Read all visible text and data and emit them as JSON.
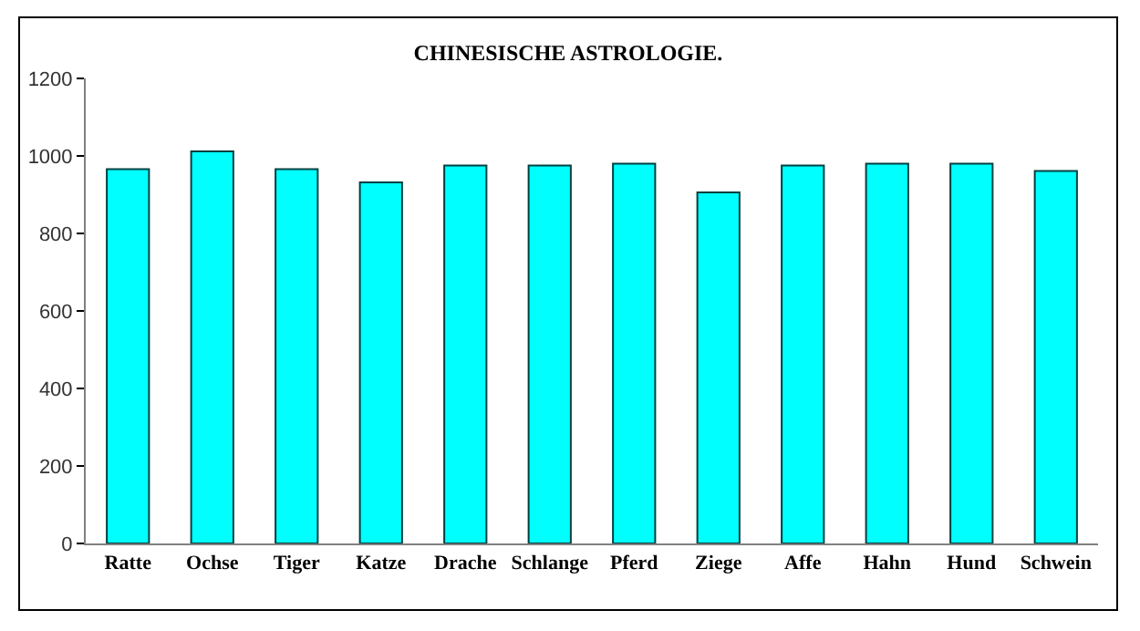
{
  "chart_data": {
    "type": "bar",
    "title": "CHINESISCHE ASTROLOGIE.",
    "categories": [
      "Ratte",
      "Ochse",
      "Tiger",
      "Katze",
      "Drache",
      "Schlange",
      "Pferd",
      "Ziege",
      "Affe",
      "Hahn",
      "Hund",
      "Schwein"
    ],
    "values": [
      966,
      1012,
      966,
      932,
      975,
      975,
      980,
      906,
      975,
      980,
      980,
      961
    ],
    "color": "#00ffff",
    "ylim": [
      0,
      1200
    ],
    "yticks": [
      0,
      200,
      400,
      600,
      800,
      1000,
      1200
    ]
  }
}
